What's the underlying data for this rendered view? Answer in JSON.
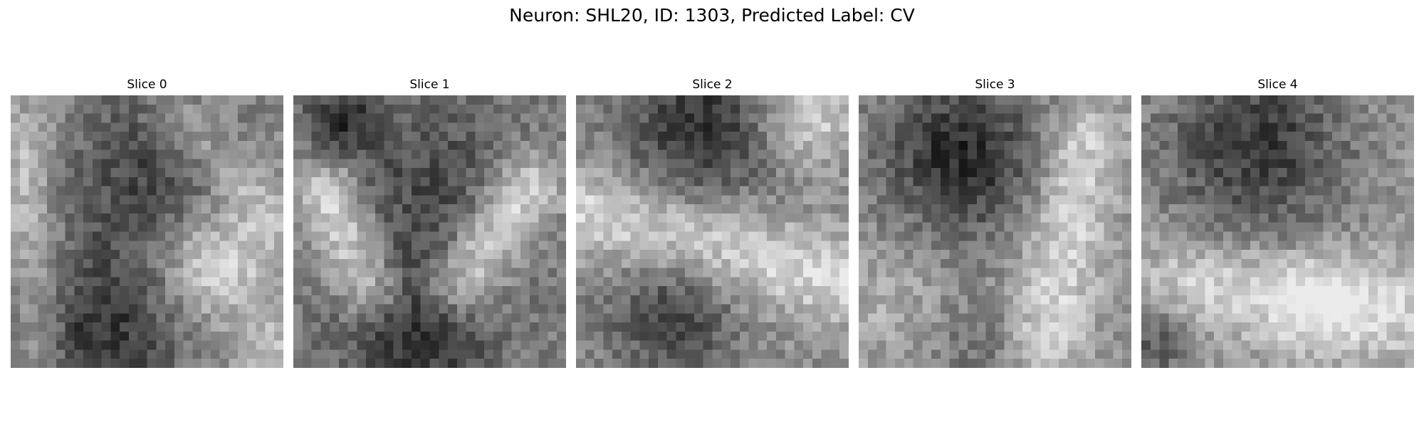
{
  "figure": {
    "title": "Neuron: SHL20, ID: 1303, Predicted Label: CV",
    "colormap": "grayscale",
    "slices": [
      {
        "label": "Slice 0"
      },
      {
        "label": "Slice 1"
      },
      {
        "label": "Slice 2"
      },
      {
        "label": "Slice 3"
      },
      {
        "label": "Slice 4"
      }
    ]
  }
}
